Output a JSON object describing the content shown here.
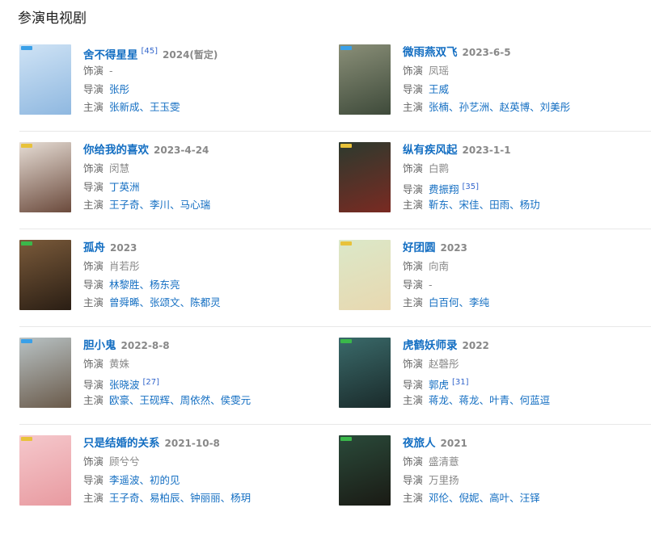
{
  "section_title": "参演电视剧",
  "labels": {
    "role": "饰演",
    "director": "导演",
    "cast": "主演"
  },
  "colors": {
    "link": "#136ec2",
    "muted": "#888888"
  },
  "items": [
    {
      "title": "舍不得星星",
      "ref": "[45]",
      "date": "2024(暂定)",
      "role": "-",
      "director": [],
      "director_text": "",
      "directors": [
        "张彤"
      ],
      "cast": [
        "张新成",
        "王玉雯"
      ],
      "poster_colors": [
        "#cfe3f5",
        "#8fb8e0"
      ],
      "tag_color": "#3aa0e8"
    },
    {
      "title": "微雨燕双飞",
      "ref": "",
      "date": "2023-6-5",
      "role": "凤瑶",
      "directors": [
        "王威"
      ],
      "cast": [
        "张楠",
        "孙艺洲",
        "赵英博",
        "刘美彤"
      ],
      "poster_colors": [
        "#8a8f78",
        "#3e4a3a"
      ],
      "tag_color": "#3aa0e8"
    },
    {
      "title": "你给我的喜欢",
      "ref": "",
      "date": "2023-4-24",
      "role": "闵慧",
      "directors": [
        "丁英洲"
      ],
      "cast": [
        "王子奇",
        "李川",
        "马心瑞"
      ],
      "poster_colors": [
        "#e6ddd5",
        "#6b4a3c"
      ],
      "tag_color": "#e8c23a"
    },
    {
      "title": "纵有疾风起",
      "ref": "",
      "date": "2023-1-1",
      "role": "白鹮",
      "directors": [
        "费振翔"
      ],
      "director_ref": "[35]",
      "cast": [
        "靳东",
        "宋佳",
        "田雨",
        "杨玏"
      ],
      "poster_colors": [
        "#2c3a2e",
        "#7a2a22"
      ],
      "tag_color": "#e8c23a"
    },
    {
      "title": "孤舟",
      "ref": "",
      "date": "2023",
      "role": "肖若彤",
      "directors": [
        "林黎胜",
        "杨东亮"
      ],
      "cast": [
        "曾舜晞",
        "张颂文",
        "陈都灵"
      ],
      "poster_colors": [
        "#7a5a3a",
        "#2a1e14"
      ],
      "tag_color": "#3ab84a"
    },
    {
      "title": "好团圆",
      "ref": "",
      "date": "2023",
      "role": "向南",
      "director_text": "-",
      "directors": [],
      "cast": [
        "白百何",
        "李纯"
      ],
      "poster_colors": [
        "#dbe8c8",
        "#e8d8b0"
      ],
      "tag_color": "#e8c23a"
    },
    {
      "title": "胆小鬼",
      "ref": "",
      "date": "2022-8-8",
      "role": "黄姝",
      "directors": [
        "张晓波"
      ],
      "director_ref": "[27]",
      "cast": [
        "欧豪",
        "王砚辉",
        "周依然",
        "侯雯元"
      ],
      "poster_colors": [
        "#b8c2c4",
        "#6a5a4a"
      ],
      "tag_color": "#3aa0e8"
    },
    {
      "title": "虎鹤妖师录",
      "ref": "",
      "date": "2022",
      "role": "赵磬彤",
      "directors": [
        "郭虎"
      ],
      "director_ref": "[31]",
      "cast": [
        "蒋龙",
        "蒋龙",
        "叶青",
        "何蓝逗"
      ],
      "poster_colors": [
        "#3a6a6a",
        "#1a2a2a"
      ],
      "tag_color": "#3ab84a"
    },
    {
      "title": "只是结婚的关系",
      "ref": "",
      "date": "2021-10-8",
      "role": "顾兮兮",
      "directors": [
        "李遥波",
        "初的见"
      ],
      "cast": [
        "王子奇",
        "易柏辰",
        "钟丽丽",
        "杨玥"
      ],
      "poster_colors": [
        "#f5c8cc",
        "#e89aa0"
      ],
      "tag_color": "#e8c23a"
    },
    {
      "title": "夜旅人",
      "ref": "",
      "date": "2021",
      "role": "盛清薏",
      "director_text": "万里扬",
      "directors": [],
      "cast": [
        "邓伦",
        "倪妮",
        "高叶",
        "汪铎"
      ],
      "poster_colors": [
        "#2a4a3a",
        "#1a1a14"
      ],
      "tag_color": "#3ab84a"
    }
  ]
}
